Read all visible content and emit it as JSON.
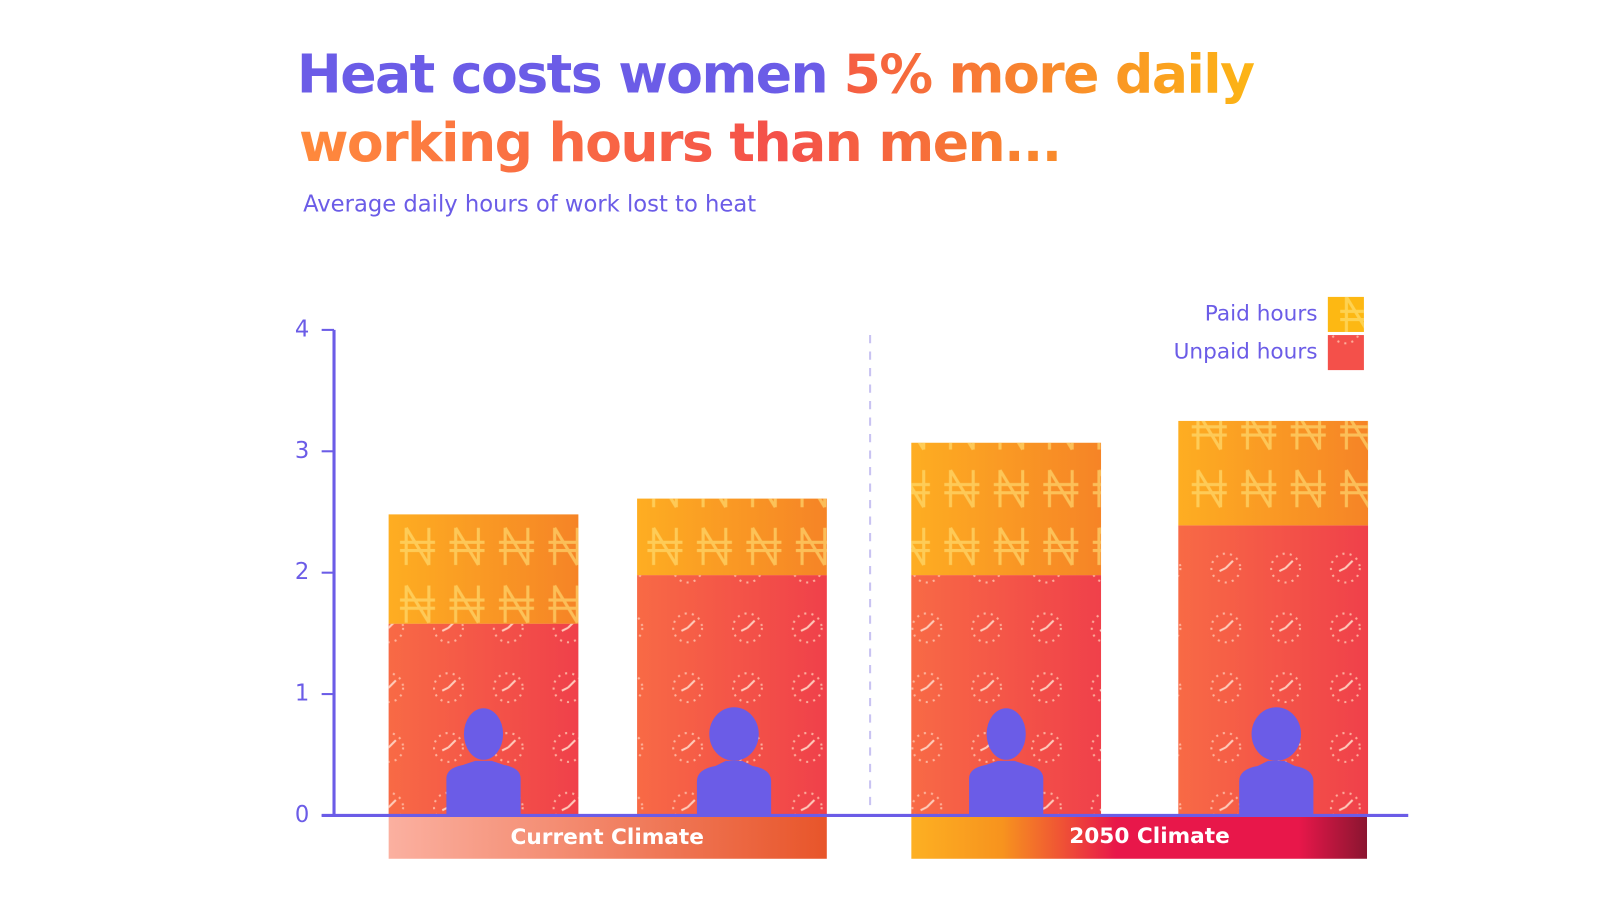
{
  "chart_data": {
    "type": "stacked-bar",
    "title": {
      "lead": "Heat costs women",
      "highlight": [
        "5% more daily",
        "working hours than men..."
      ]
    },
    "subtitle": "Average daily hours of work lost to heat",
    "categories": [
      null,
      null,
      null,
      null
    ],
    "groups": [
      "Current Climate",
      "2050 Climate"
    ],
    "series": [
      {
        "name": "Paid hours",
        "color": "#fdb813",
        "values": [
          0.9,
          0.63,
          1.09,
          0.86
        ]
      },
      {
        "name": "Unpaid hours",
        "color": "#f4504a",
        "values": [
          1.58,
          1.98,
          1.98,
          2.39
        ]
      }
    ],
    "ylim": [
      0,
      4
    ],
    "yticks": [
      0,
      1,
      2,
      3,
      4
    ],
    "legend": "top-right"
  }
}
